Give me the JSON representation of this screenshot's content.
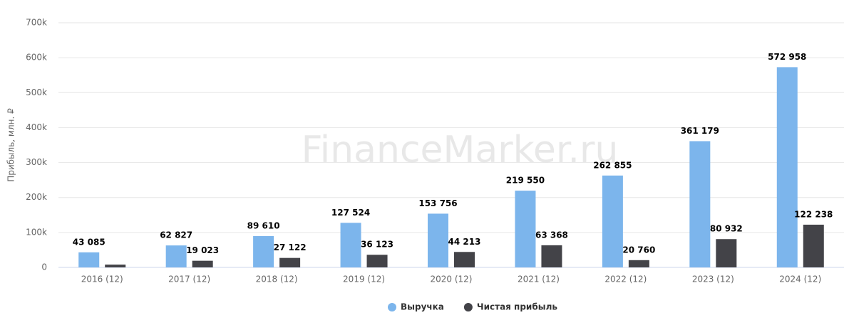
{
  "chart_data": {
    "type": "bar",
    "y_label": "Прибыль, млн. ₽",
    "watermark": "FinanceMarker.ru",
    "categories": [
      "2016 (12)",
      "2017 (12)",
      "2018 (12)",
      "2019 (12)",
      "2020 (12)",
      "2021 (12)",
      "2022 (12)",
      "2023 (12)",
      "2024 (12)"
    ],
    "series": [
      {
        "name": "Выручка",
        "color": "#7cb5ec",
        "values": [
          43085,
          62827,
          89610,
          127524,
          153756,
          219550,
          262855,
          361179,
          572958
        ],
        "value_labels": [
          "43 085",
          "62 827",
          "89 610",
          "127 524",
          "153 756",
          "219 550",
          "262 855",
          "361 179",
          "572 958"
        ]
      },
      {
        "name": "Чистая прибыль",
        "color": "#434348",
        "values": [
          8000,
          19023,
          27122,
          36123,
          44213,
          63368,
          20760,
          80932,
          122238
        ],
        "value_labels": [
          null,
          "19 023",
          "27 122",
          "36 123",
          "44 213",
          "63 368",
          "20 760",
          "80 932",
          "122 238"
        ]
      }
    ],
    "ylim": [
      0,
      700000
    ],
    "yticks": [
      0,
      {
        "value": 100000,
        "label": "100k"
      },
      {
        "value": 200000,
        "label": "200k"
      },
      {
        "value": 300000,
        "label": "300k"
      },
      {
        "value": 400000,
        "label": "400k"
      },
      {
        "value": 500000,
        "label": "500k"
      },
      {
        "value": 600000,
        "label": "600k"
      },
      {
        "value": 700000,
        "label": "700k"
      }
    ],
    "grid": true
  }
}
